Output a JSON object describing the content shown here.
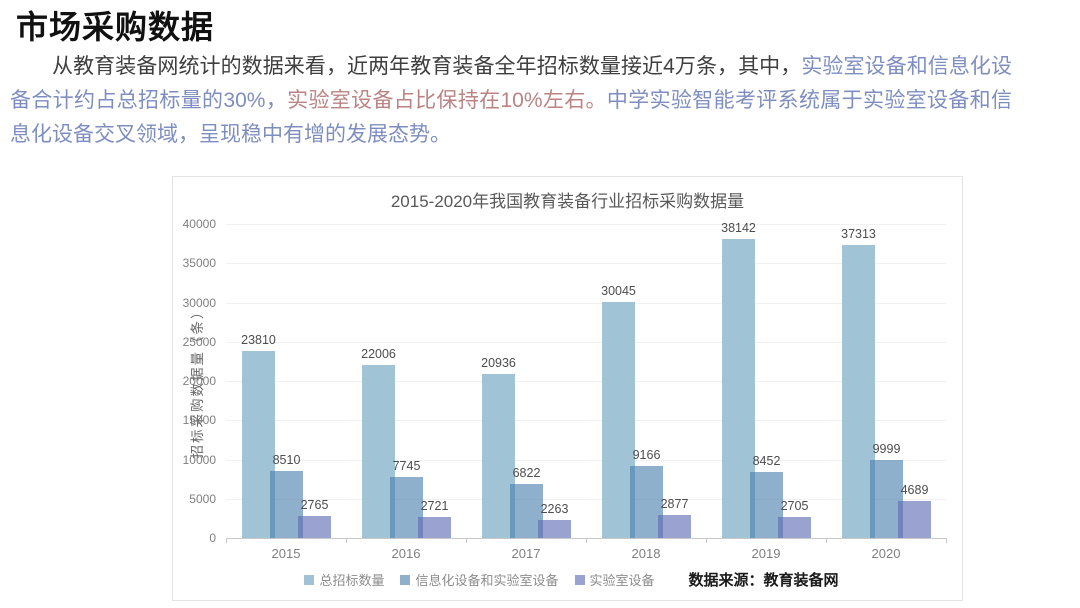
{
  "page": {
    "title": "市场采购数据",
    "paragraph": {
      "segments": [
        {
          "text": "从教育装备网统计的数据来看，近两年教育装备全年招标数量接近4万条，其中，",
          "color": "#3f3f3f"
        },
        {
          "text": "实验室设备和信息化设备合计约占总招标量的30%，",
          "color": "#7e8ec0"
        },
        {
          "text": "实验室设备占比保持在10%左右。",
          "color": "#bb8383"
        },
        {
          "text": "中学实验智能考评系统属于实验室设备和信息化设备交叉领域，呈现稳中有增的发展态势。",
          "color": "#7e8ec0"
        }
      ]
    }
  },
  "chart_data": {
    "type": "bar",
    "title": "2015-2020年我国教育装备行业招标采购数据量",
    "ylabel": "招标采购数据量（条）",
    "xlabel": "",
    "categories": [
      "2015",
      "2016",
      "2017",
      "2018",
      "2019",
      "2020"
    ],
    "series": [
      {
        "name": "总招标数量",
        "bar_color": "rgba(150,188,208,0.9)",
        "legend_color": "#a0c2d4",
        "values": [
          23810,
          22006,
          20936,
          30045,
          38142,
          37313
        ]
      },
      {
        "name": "信息化设备和实验室设备",
        "bar_color": "rgba(74,127,174,0.62)",
        "legend_color": "#8fb0cd",
        "values": [
          8510,
          7745,
          6822,
          9166,
          8452,
          9999
        ]
      },
      {
        "name": "实验室设备",
        "bar_color": "rgba(92,106,177,0.62)",
        "legend_color": "#9aa3cf",
        "values": [
          2765,
          2721,
          2263,
          2877,
          2705,
          4689
        ]
      }
    ],
    "ylim": [
      0,
      40000
    ],
    "ytick_step": 5000,
    "grid": true,
    "legend_position": "bottom",
    "source_label": "数据来源：教育装备网"
  }
}
